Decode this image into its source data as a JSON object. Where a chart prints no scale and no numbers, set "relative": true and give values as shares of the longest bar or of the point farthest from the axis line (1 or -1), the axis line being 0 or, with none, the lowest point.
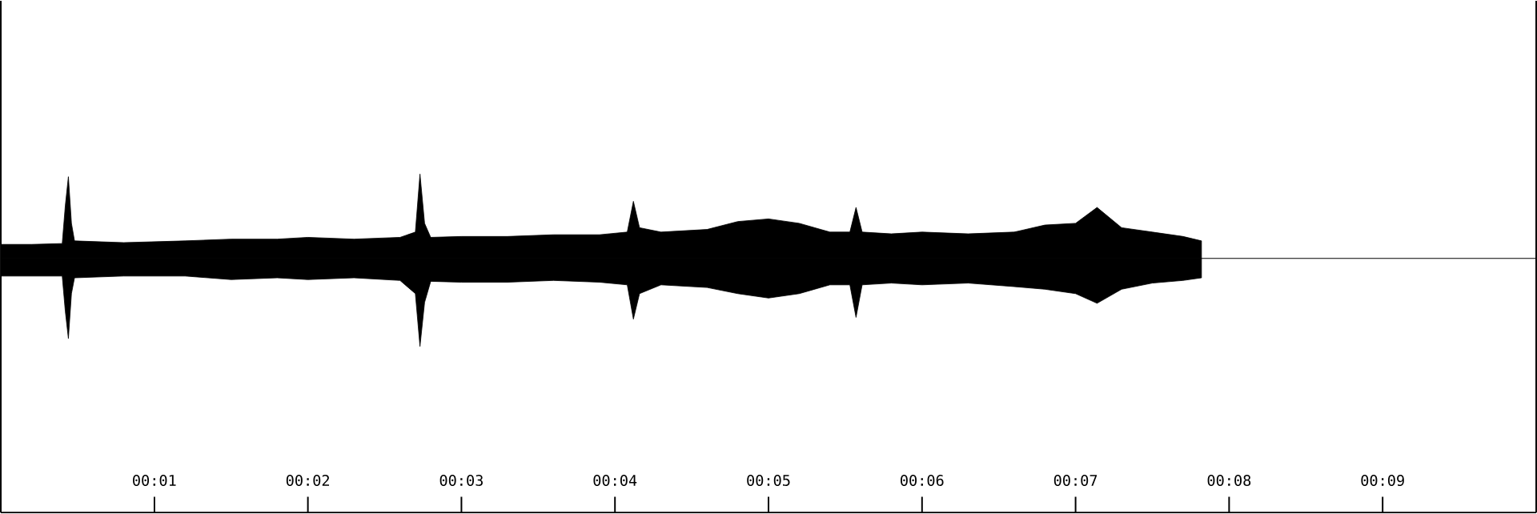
{
  "chart_data": {
    "type": "area",
    "relative": true,
    "tick_labels": "x",
    "x": [
      0.0,
      0.2,
      0.4,
      0.42,
      0.44,
      0.46,
      0.48,
      0.8,
      1.2,
      1.5,
      1.8,
      2.0,
      2.3,
      2.6,
      2.7,
      2.73,
      2.76,
      2.8,
      3.0,
      3.3,
      3.6,
      3.9,
      4.08,
      4.12,
      4.16,
      4.3,
      4.6,
      4.8,
      5.0,
      5.2,
      5.4,
      5.53,
      5.57,
      5.61,
      5.8,
      6.0,
      6.3,
      6.6,
      6.8,
      7.0,
      7.14,
      7.3,
      7.5,
      7.7,
      7.82
    ],
    "series": [
      {
        "color": "#000000",
        "values": [
          0.16,
          0.16,
          0.17,
          0.6,
          0.93,
          0.4,
          0.2,
          0.18,
          0.2,
          0.22,
          0.22,
          0.24,
          0.22,
          0.24,
          0.3,
          0.96,
          0.4,
          0.24,
          0.25,
          0.25,
          0.27,
          0.27,
          0.3,
          0.65,
          0.35,
          0.3,
          0.33,
          0.42,
          0.45,
          0.4,
          0.3,
          0.3,
          0.58,
          0.3,
          0.28,
          0.3,
          0.28,
          0.3,
          0.38,
          0.4,
          0.58,
          0.35,
          0.3,
          0.25,
          0.2
        ]
      },
      {
        "color": "#000000",
        "values": [
          -0.2,
          -0.2,
          -0.2,
          -0.6,
          -0.91,
          -0.4,
          -0.22,
          -0.2,
          -0.2,
          -0.24,
          -0.22,
          -0.24,
          -0.22,
          -0.25,
          -0.4,
          -1,
          -0.5,
          -0.26,
          -0.27,
          -0.27,
          -0.25,
          -0.27,
          -0.3,
          -0.69,
          -0.4,
          -0.3,
          -0.33,
          -0.4,
          -0.45,
          -0.4,
          -0.3,
          -0.3,
          -0.67,
          -0.3,
          -0.28,
          -0.3,
          -0.28,
          -0.32,
          -0.35,
          -0.4,
          -0.51,
          -0.35,
          -0.28,
          -0.25,
          -0.22
        ]
      }
    ],
    "xlim": [
      0,
      10
    ],
    "xticks": [
      {
        "value": 1,
        "label": "00:01"
      },
      {
        "value": 2,
        "label": "00:02"
      },
      {
        "value": 3,
        "label": "00:03"
      },
      {
        "value": 4,
        "label": "00:04"
      },
      {
        "value": 5,
        "label": "00:05"
      },
      {
        "value": 6,
        "label": "00:06"
      },
      {
        "value": 7,
        "label": "00:07"
      },
      {
        "value": 8,
        "label": "00:08"
      },
      {
        "value": 9,
        "label": "00:09"
      }
    ]
  }
}
